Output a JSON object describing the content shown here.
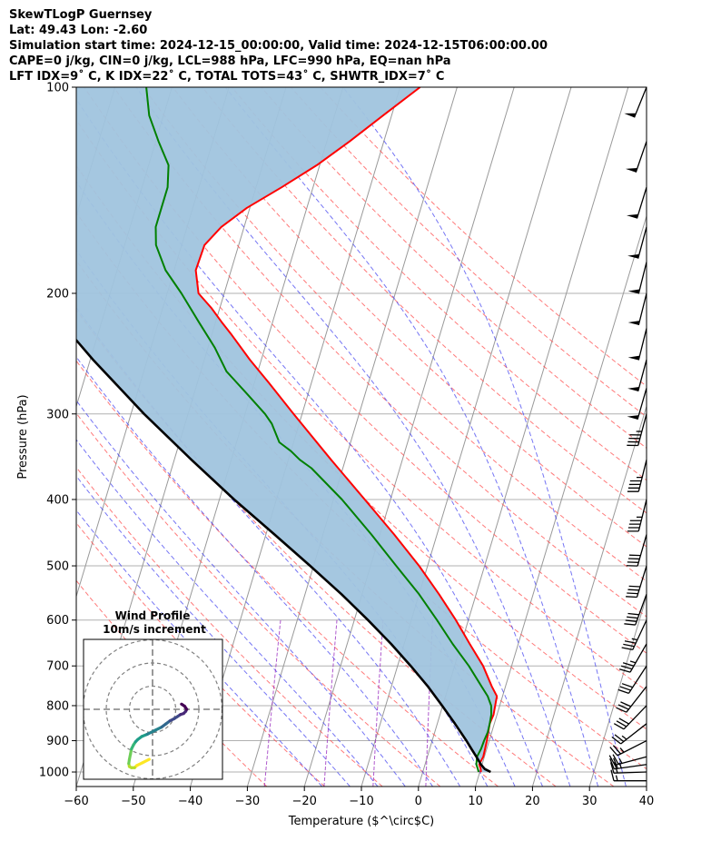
{
  "header": {
    "line1": "SkewTLogP Guernsey",
    "line2": "Lat: 49.43   Lon: -2.60",
    "line3": "Simulation start time: 2024-12-15_00:00:00, Valid time: 2024-12-15T06:00:00.00",
    "line4": "CAPE=0 j/kg, CIN=0 j/kg, LCL=988 hPa, LFC=990 hPa, EQ=nan hPa",
    "line5": "LFT IDX=9˚ C, K IDX=22˚ C, TOTAL TOTS=43˚ C, SHWTR_IDX=7˚ C"
  },
  "inset": {
    "title_line1": "Wind Profile",
    "title_line2": "10m/s increment"
  },
  "colors": {
    "temperature": "#ff0000",
    "dewpoint": "#008000",
    "parcel": "#000000",
    "cape_fill": "#a0c4de",
    "dry_adiabat": "#ff4d4d",
    "moist_adiabat": "#3a3af0",
    "mixing_ratio": "#9b30c0",
    "isotherm": "#999999",
    "grid": "#b0b0b0"
  },
  "chart_data": {
    "type": "skewT-logP",
    "xlabel": "Temperature ($^\\circ$C)",
    "ylabel": "Pressure (hPa)",
    "xlim": [
      -60,
      40
    ],
    "ylim": [
      1050,
      100
    ],
    "y_scale": "log",
    "x_ticks": [
      -60,
      -50,
      -40,
      -30,
      -20,
      -10,
      0,
      10,
      20,
      30,
      40
    ],
    "x_tick_labels": [
      "−60",
      "−50",
      "−40",
      "−30",
      "−20",
      "−10",
      "0",
      "10",
      "20",
      "30",
      "40"
    ],
    "y_ticks": [
      1000,
      900,
      800,
      700,
      600,
      500,
      400,
      300,
      200,
      100
    ],
    "y_tick_labels": [
      "1000",
      "900",
      "800",
      "700",
      "600",
      "500",
      "400",
      "300",
      "200",
      "100"
    ],
    "grid": true,
    "series": [
      {
        "key": "temperature",
        "p": [
          1000,
          990,
          975,
          950,
          925,
          900,
          875,
          850,
          825,
          800,
          775,
          750,
          700,
          650,
          600,
          550,
          500,
          450,
          400,
          350,
          300,
          270,
          250,
          230,
          220,
          210,
          200,
          185,
          170,
          160,
          150,
          140,
          130,
          120,
          110,
          100
        ],
        "t": [
          10.2,
          10.0,
          9.5,
          9.8,
          9.7,
          9.6,
          9.4,
          9.2,
          9.4,
          9.2,
          9.0,
          7.6,
          5.0,
          1.5,
          -2.2,
          -6.5,
          -11.5,
          -17.5,
          -24.5,
          -32.5,
          -41.5,
          -47.5,
          -52.0,
          -56.5,
          -59.0,
          -61.5,
          -64.5,
          -66.2,
          -66.0,
          -64.0,
          -60.5,
          -55.5,
          -50.5,
          -46.0,
          -41.5,
          -36.5
        ]
      },
      {
        "key": "dewpoint",
        "p": [
          1000,
          990,
          975,
          950,
          925,
          900,
          875,
          850,
          825,
          800,
          775,
          750,
          700,
          650,
          600,
          550,
          500,
          450,
          400,
          360,
          350,
          340,
          330,
          310,
          300,
          280,
          260,
          240,
          220,
          200,
          185,
          170,
          160,
          150,
          140,
          130,
          120,
          110,
          100
        ],
        "t": [
          9.8,
          9.5,
          9.0,
          8.7,
          9.0,
          9.1,
          9.3,
          9.2,
          9.0,
          8.5,
          7.4,
          5.8,
          2.5,
          -1.5,
          -5.5,
          -10.0,
          -15.5,
          -21.5,
          -28.5,
          -35.5,
          -38.0,
          -40.0,
          -42.5,
          -44.8,
          -46.5,
          -50.8,
          -55.5,
          -58.8,
          -63.0,
          -67.5,
          -71.5,
          -74.5,
          -75.5,
          -75.5,
          -75.5,
          -76.5,
          -79.5,
          -82.5,
          -84.5
        ]
      },
      {
        "key": "parcel",
        "p": [
          1000,
          990,
          975,
          950,
          925,
          900,
          850,
          800,
          750,
          700,
          650,
          600,
          550,
          500,
          450,
          400,
          350,
          300,
          250,
          200,
          150,
          125,
          100
        ],
        "t": [
          11.9,
          10.7,
          9.8,
          8.6,
          7.3,
          6.0,
          3.1,
          -0.1,
          -3.6,
          -7.7,
          -12.3,
          -17.6,
          -23.6,
          -30.6,
          -38.5,
          -47.4,
          -57.0,
          -67.7,
          -79.5,
          -93.0,
          -109.0,
          -118.5,
          -129.5
        ]
      }
    ],
    "shaded_region": {
      "between": [
        "temperature",
        "parcel"
      ],
      "p_range": [
        1000,
        100
      ]
    },
    "wind_barbs": {
      "p": [
        1030,
        1000,
        975,
        950,
        900,
        850,
        800,
        750,
        700,
        650,
        600,
        550,
        500,
        450,
        400,
        350,
        300,
        275,
        250,
        225,
        200,
        180,
        160,
        140,
        120,
        100
      ],
      "speed_ms": [
        8,
        11,
        12,
        12,
        13,
        14,
        15,
        16,
        16,
        17,
        18,
        20,
        20,
        21,
        22,
        23,
        24,
        25,
        25,
        25,
        26,
        26,
        26,
        26,
        27,
        27
      ],
      "direction_deg": [
        270,
        268,
        262,
        255,
        243,
        232,
        224,
        218,
        213,
        210,
        205,
        200,
        197,
        196,
        194,
        194,
        195,
        196,
        195,
        194,
        194,
        194,
        195,
        197,
        199,
        202
      ]
    },
    "hodograph": {
      "title": "Wind Profile",
      "subtitle": "10m/s increment",
      "increment_ms": 10,
      "rings": [
        1,
        2,
        3
      ],
      "u": [
        18,
        15,
        12,
        11,
        9.5,
        8.5,
        8.2,
        8.5,
        9,
        9.5,
        10.5,
        11.5,
        12.5,
        14.5,
        17,
        19,
        21,
        24,
        26,
        28,
        30,
        31.5,
        33,
        34.5,
        35.5,
        36,
        35,
        33.5
      ],
      "v": [
        -24,
        -25.5,
        -27,
        -28,
        -28,
        -27.5,
        -26,
        -24,
        -21.5,
        -19,
        -17,
        -15.5,
        -14.5,
        -13,
        -12,
        -11,
        -10,
        -8.5,
        -7,
        -5.5,
        -4.5,
        -3.5,
        -2.5,
        -2,
        -1,
        0,
        1.5,
        2.5
      ],
      "colormap": "viridis_reversed"
    }
  }
}
